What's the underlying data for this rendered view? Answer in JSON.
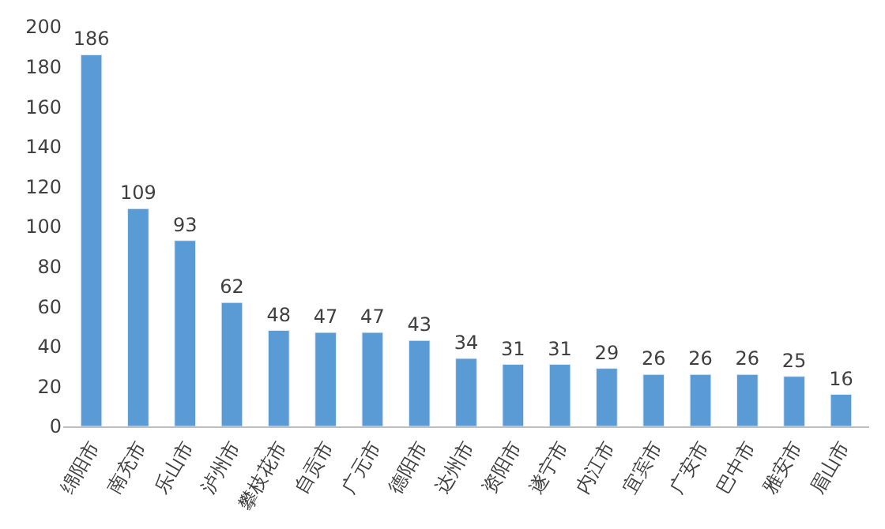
{
  "chart_data": {
    "type": "bar",
    "categories": [
      "绵阳市",
      "南充市",
      "乐山市",
      "泸州市",
      "攀枝花市",
      "自贡市",
      "广元市",
      "德阳市",
      "达州市",
      "资阳市",
      "遂宁市",
      "内江市",
      "宜宾市",
      "广安市",
      "巴中市",
      "雅安市",
      "眉山市"
    ],
    "values": [
      186,
      109,
      93,
      62,
      48,
      47,
      47,
      43,
      34,
      31,
      31,
      29,
      26,
      26,
      26,
      25,
      16
    ],
    "color": "#5b9bd5",
    "ylim": [
      0,
      200
    ],
    "yticks": [
      0,
      20,
      40,
      60,
      80,
      100,
      120,
      140,
      160,
      180,
      200
    ],
    "data_labels": true
  }
}
